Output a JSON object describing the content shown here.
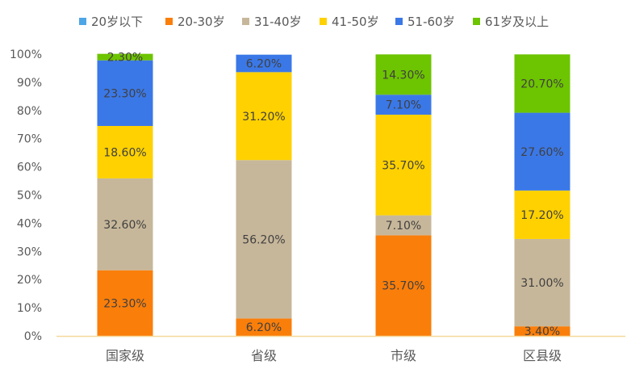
{
  "chart_data": {
    "type": "bar",
    "stacked": true,
    "normalized": true,
    "categories": [
      "国家级",
      "省级",
      "市级",
      "区县级"
    ],
    "series": [
      {
        "name": "20岁以下",
        "color": "#4ea6e6",
        "values": [
          0,
          0,
          0,
          0
        ],
        "labels": [
          "",
          "",
          "",
          ""
        ]
      },
      {
        "name": "20-30岁",
        "color": "#fa7e0a",
        "values": [
          23.3,
          6.2,
          35.7,
          3.4
        ],
        "labels": [
          "23.30%",
          "6.20%",
          "35.70%",
          "3.40%"
        ]
      },
      {
        "name": "31-40岁",
        "color": "#c7b79a",
        "values": [
          32.6,
          56.2,
          7.1,
          31.0
        ],
        "labels": [
          "32.60%",
          "56.20%",
          "7.10%",
          "31.00%"
        ]
      },
      {
        "name": "41-50岁",
        "color": "#ffd100",
        "values": [
          18.6,
          31.2,
          35.7,
          17.2
        ],
        "labels": [
          "18.60%",
          "31.20%",
          "35.70%",
          "17.20%"
        ]
      },
      {
        "name": "51-60岁",
        "color": "#3b78e7",
        "values": [
          23.3,
          6.2,
          7.1,
          27.6
        ],
        "labels": [
          "23.30%",
          "6.20%",
          "7.10%",
          "27.60%"
        ]
      },
      {
        "name": "61岁及以上",
        "color": "#6dc400",
        "values": [
          2.3,
          0,
          14.3,
          20.7
        ],
        "labels": [
          "2.30%",
          "",
          "14.30%",
          "20.70%"
        ]
      }
    ],
    "yticks": [
      "0%",
      "10%",
      "20%",
      "30%",
      "40%",
      "50%",
      "60%",
      "70%",
      "80%",
      "90%",
      "100%"
    ],
    "ylim": [
      0,
      100
    ],
    "legend_position": "top",
    "axis_color": "#f5d99a",
    "grid": false
  }
}
